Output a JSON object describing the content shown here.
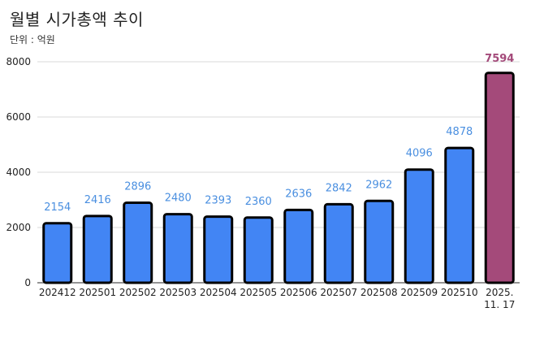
{
  "header": {
    "title": "월별 시가총액 추이",
    "unit": "단위 : 억원"
  },
  "colors": {
    "bar_default": "#4285f4",
    "bar_highlight": "#a44a7a",
    "label_default": "#4a8fe0",
    "label_highlight": "#a44a7a",
    "bar_outline": "#000000",
    "grid": "#d9d9d9"
  },
  "chart_data": {
    "type": "bar",
    "title": "월별 시가총액 추이",
    "subtitle": "단위 : 억원",
    "xlabel": "",
    "ylabel": "",
    "categories": [
      "202412",
      "202501",
      "202502",
      "202503",
      "202504",
      "202505",
      "202506",
      "202507",
      "202508",
      "202509",
      "202510",
      "2025.\n11. 17"
    ],
    "values": [
      2154,
      2416,
      2896,
      2480,
      2393,
      2360,
      2636,
      2842,
      2962,
      4096,
      4878,
      7594
    ],
    "highlight_index": 11,
    "ylim": [
      0,
      8000
    ],
    "yticks": [
      0,
      2000,
      4000,
      6000,
      8000
    ],
    "grid": true,
    "legend": "none"
  }
}
